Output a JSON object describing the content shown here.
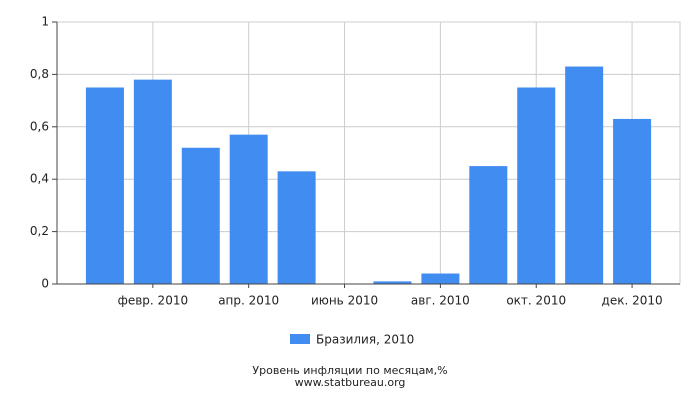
{
  "chart_data": {
    "type": "bar",
    "categories": [
      null,
      "февр. 2010",
      null,
      "апр. 2010",
      null,
      "июнь 2010",
      null,
      "авг. 2010",
      null,
      "окт. 2010",
      null,
      "дек. 2010"
    ],
    "series": [
      {
        "name": "Бразилия, 2010",
        "color": "#418cf0",
        "values": [
          0.75,
          0.78,
          0.52,
          0.57,
          0.43,
          0,
          0.01,
          0.04,
          0.45,
          0.75,
          0.83,
          0.63
        ]
      }
    ],
    "ylim": [
      0,
      1
    ],
    "yticks": [
      0,
      {
        "value": 0.2,
        "label": "0,2"
      },
      {
        "value": 0.4,
        "label": "0,4"
      },
      {
        "value": 0.6,
        "label": "0,6"
      },
      {
        "value": 0.8,
        "label": "0,8"
      },
      1
    ],
    "grid": true,
    "footer": [
      "Уровень инфляции по месяцам,%",
      "www.statbureau.org"
    ]
  }
}
